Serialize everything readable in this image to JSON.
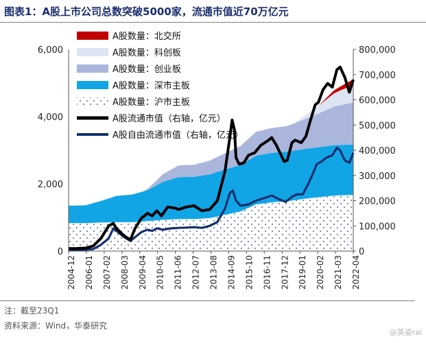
{
  "title": "图表1：A股上市公司总数突破5000家，流通市值近70万亿元",
  "note": "注：截至23Q1",
  "source": "资料来源：Wind，华泰研究",
  "watermark": "@英姿rai",
  "colors": {
    "bse": "#c00000",
    "star": "#dde4f2",
    "chinext": "#aab6dc",
    "szmain": "#12a5e6",
    "shmain_dots": "#1f3a7a",
    "float_cap": "#000000",
    "free_float_cap": "#13306e"
  },
  "chart_data": {
    "type": "area",
    "x_tick_labels": [
      "2004-12",
      "2006-01",
      "2007-02",
      "2008-03",
      "2009-04",
      "2010-05",
      "2011-06",
      "2012-07",
      "2013-08",
      "2014-09",
      "2015-10",
      "2016-11",
      "2017-12",
      "2019-01",
      "2020-02",
      "2021-03",
      "2022-04"
    ],
    "x_range": [
      2004.92,
      2023.25
    ],
    "y_left": {
      "min": 0,
      "max": 6000,
      "ticks": [
        "0",
        "2,000",
        "4,000",
        "6,000"
      ]
    },
    "y_right": {
      "min": 0,
      "max": 800000,
      "ticks": [
        "0",
        "100,000",
        "200,000",
        "300,000",
        "400,000",
        "500,000",
        "600,000",
        "700,000",
        "800,000"
      ]
    },
    "stack_order": [
      "沪市主板",
      "深市主板",
      "创业板",
      "科创板",
      "北交所"
    ],
    "series": [
      {
        "name": "A股数量：北交所",
        "axis": "left",
        "kind": "area",
        "x": [
          2004.92,
          2021.0,
          2021.9,
          2022.5,
          2023.25
        ],
        "y": [
          0,
          0,
          80,
          120,
          180
        ]
      },
      {
        "name": "A股数量：科创板",
        "axis": "left",
        "kind": "area",
        "x": [
          2004.92,
          2019.5,
          2020.0,
          2020.5,
          2021.0,
          2021.5,
          2022.0,
          2022.5,
          2023.25
        ],
        "y": [
          0,
          0,
          90,
          160,
          220,
          310,
          390,
          450,
          510
        ]
      },
      {
        "name": "A股数量：创业板",
        "axis": "left",
        "kind": "area",
        "x": [
          2004.92,
          2009.75,
          2010.0,
          2010.5,
          2011.0,
          2012.0,
          2013.0,
          2014.0,
          2015.0,
          2016.0,
          2017.0,
          2018.0,
          2019.0,
          2020.0,
          2021.0,
          2022.0,
          2023.25
        ],
        "y": [
          0,
          0,
          40,
          130,
          230,
          350,
          355,
          410,
          480,
          570,
          710,
          740,
          760,
          870,
          1000,
          1150,
          1250
        ]
      },
      {
        "name": "A股数量：深市主板",
        "axis": "left",
        "kind": "area",
        "x": [
          2004.92,
          2006.0,
          2007.0,
          2008.0,
          2009.0,
          2010.0,
          2011.0,
          2012.0,
          2013.0,
          2014.0,
          2015.0,
          2016.0,
          2017.0,
          2018.0,
          2019.0,
          2020.0,
          2021.0,
          2022.0,
          2023.25
        ],
        "y": [
          520,
          530,
          640,
          780,
          820,
          920,
          1130,
          1250,
          1260,
          1300,
          1350,
          1380,
          1450,
          1470,
          1480,
          1480,
          1490,
          1500,
          1500
        ]
      },
      {
        "name": "A股数量：沪市主板",
        "axis": "left",
        "kind": "area",
        "x": [
          2004.92,
          2006.0,
          2007.0,
          2008.0,
          2009.0,
          2010.0,
          2011.0,
          2012.0,
          2013.0,
          2014.0,
          2015.0,
          2016.0,
          2017.0,
          2018.0,
          2019.0,
          2020.0,
          2021.0,
          2022.0,
          2023.25
        ],
        "y": [
          830,
          830,
          850,
          860,
          860,
          890,
          930,
          950,
          950,
          980,
          1080,
          1180,
          1390,
          1450,
          1480,
          1550,
          1600,
          1650,
          1670
        ]
      },
      {
        "name": "A股流通市值（右轴，亿元）",
        "axis": "right",
        "kind": "line",
        "x": [
          2004.92,
          2005.5,
          2006.0,
          2006.5,
          2007.0,
          2007.5,
          2007.8,
          2008.0,
          2008.5,
          2008.9,
          2009.2,
          2009.6,
          2010.0,
          2010.3,
          2010.6,
          2010.9,
          2011.3,
          2011.8,
          2012.0,
          2012.5,
          2013.0,
          2013.5,
          2014.0,
          2014.5,
          2015.0,
          2015.3,
          2015.45,
          2015.6,
          2015.7,
          2015.9,
          2016.2,
          2016.5,
          2016.9,
          2017.3,
          2017.8,
          2018.0,
          2018.3,
          2018.8,
          2019.0,
          2019.3,
          2019.5,
          2019.9,
          2020.2,
          2020.5,
          2020.8,
          2021.0,
          2021.3,
          2021.6,
          2021.9,
          2022.2,
          2022.4,
          2022.7,
          2023.0,
          2023.25
        ],
        "y": [
          10000,
          10500,
          12000,
          20000,
          50000,
          100000,
          110000,
          90000,
          60000,
          45000,
          90000,
          130000,
          150000,
          140000,
          160000,
          140000,
          175000,
          170000,
          165000,
          175000,
          180000,
          160000,
          165000,
          200000,
          320000,
          450000,
          520000,
          480000,
          370000,
          345000,
          350000,
          380000,
          390000,
          420000,
          440000,
          450000,
          420000,
          355000,
          360000,
          430000,
          440000,
          430000,
          455000,
          520000,
          580000,
          590000,
          640000,
          665000,
          650000,
          720000,
          730000,
          690000,
          630000,
          680000
        ]
      },
      {
        "name": "A股自由流通市值（右轴，亿元）",
        "axis": "right",
        "kind": "line",
        "x": [
          2004.92,
          2006.0,
          2006.5,
          2007.0,
          2007.5,
          2007.8,
          2008.0,
          2008.5,
          2008.9,
          2009.3,
          2009.6,
          2010.0,
          2010.3,
          2010.6,
          2011.0,
          2011.5,
          2012.0,
          2012.5,
          2013.0,
          2013.5,
          2014.0,
          2014.5,
          2015.0,
          2015.3,
          2015.5,
          2015.7,
          2016.0,
          2016.5,
          2017.0,
          2017.5,
          2018.0,
          2018.5,
          2018.9,
          2019.3,
          2019.6,
          2020.0,
          2020.3,
          2020.6,
          2020.9,
          2021.2,
          2021.5,
          2021.9,
          2022.2,
          2022.4,
          2022.7,
          2023.0,
          2023.25
        ],
        "y": [
          5000,
          5500,
          8000,
          25000,
          50000,
          90000,
          80000,
          55000,
          40000,
          60000,
          75000,
          85000,
          80000,
          90000,
          85000,
          90000,
          92000,
          93000,
          95000,
          92000,
          100000,
          115000,
          170000,
          230000,
          240000,
          200000,
          180000,
          185000,
          200000,
          210000,
          220000,
          205000,
          195000,
          215000,
          225000,
          225000,
          260000,
          300000,
          345000,
          355000,
          370000,
          380000,
          410000,
          400000,
          360000,
          350000,
          390000
        ]
      }
    ]
  }
}
